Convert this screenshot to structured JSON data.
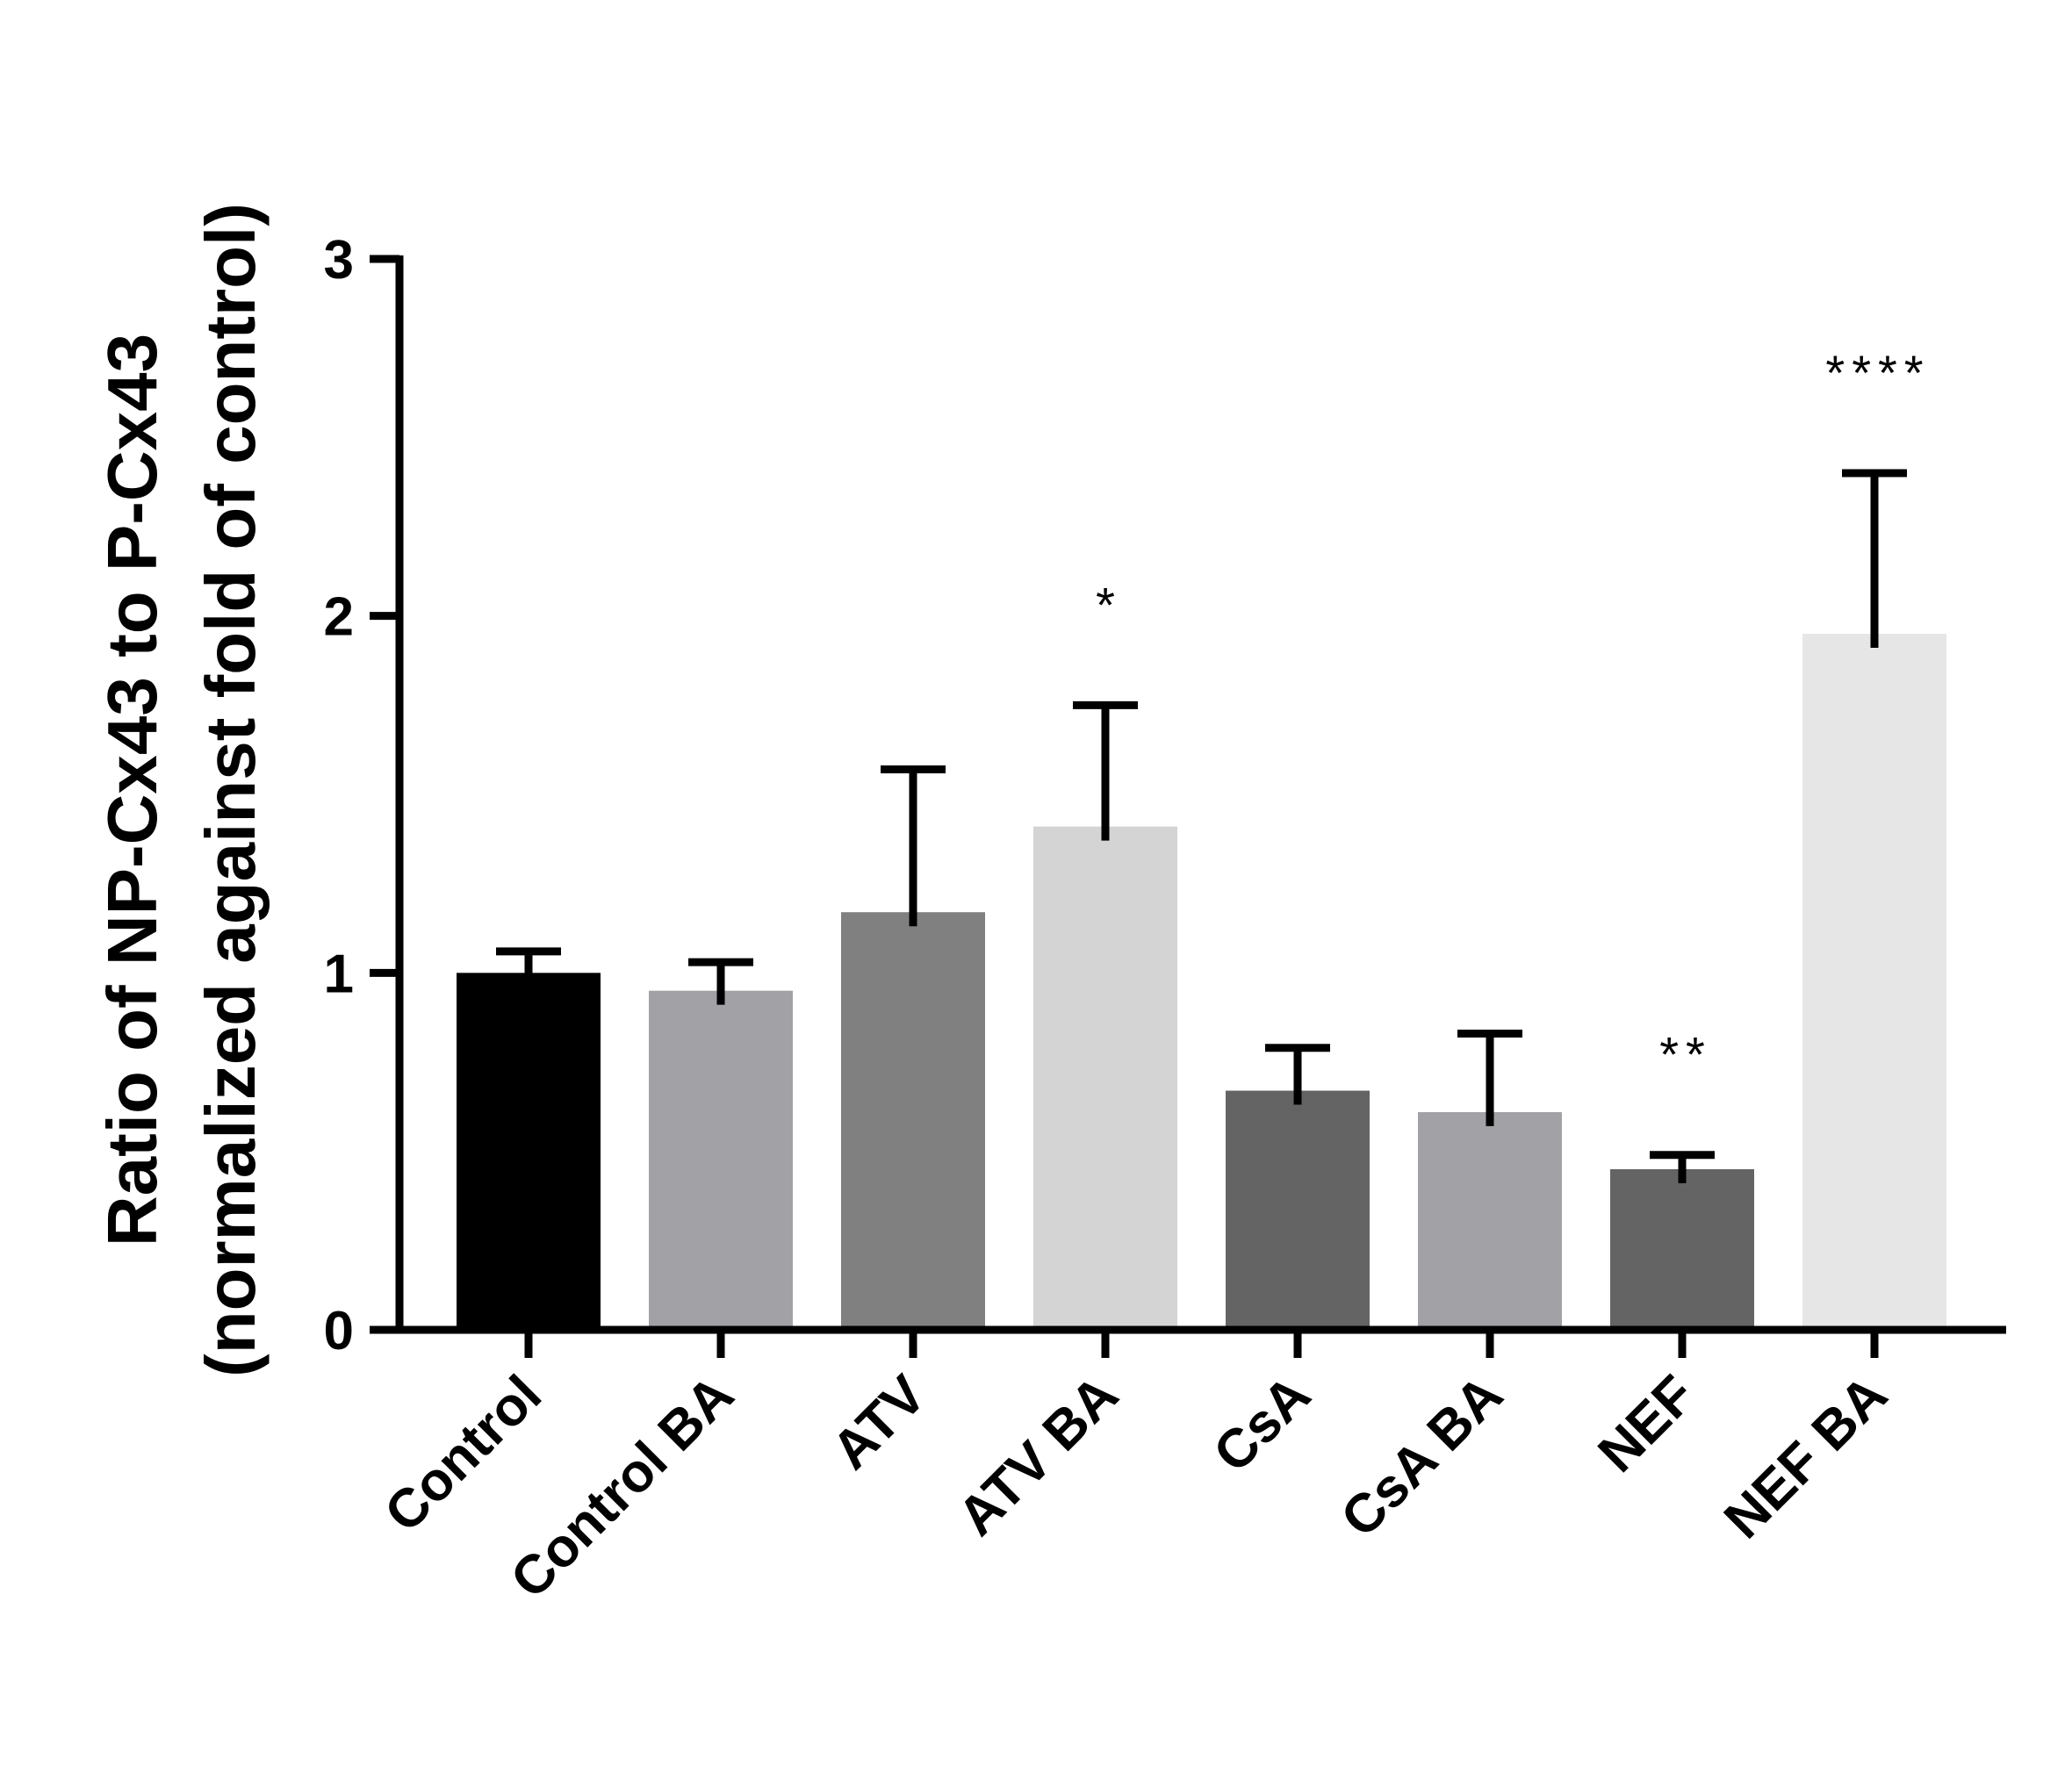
{
  "chart_data": {
    "type": "bar",
    "title": "",
    "xlabel": "",
    "ylabel": "Ratio of NP-Cx43 to P-Cx43",
    "ylabel_sub": "(normalized against fold of control)",
    "ylim": [
      0,
      3
    ],
    "yticks": [
      0,
      1,
      2,
      3
    ],
    "ytick_labels": [
      "0",
      "1",
      "2",
      "3"
    ],
    "categories": [
      "Control",
      "Control BA",
      "ATV",
      "ATV BA",
      "CsA",
      "CsA BA",
      "NEF",
      "NEF BA"
    ],
    "values": [
      1.0,
      0.95,
      1.17,
      1.41,
      0.67,
      0.61,
      0.45,
      1.95
    ],
    "error_upper": [
      1.06,
      1.03,
      1.57,
      1.75,
      0.79,
      0.83,
      0.49,
      2.4
    ],
    "bar_colors": [
      "#000000",
      "#a2a1a6",
      "#808080",
      "#d4d4d4",
      "#646464",
      "#a2a1a6",
      "#646464",
      "#e6e6e6"
    ],
    "significance": [
      "",
      "",
      "",
      "*",
      "",
      "",
      "**",
      "****"
    ],
    "legend": "none",
    "grid": false
  }
}
